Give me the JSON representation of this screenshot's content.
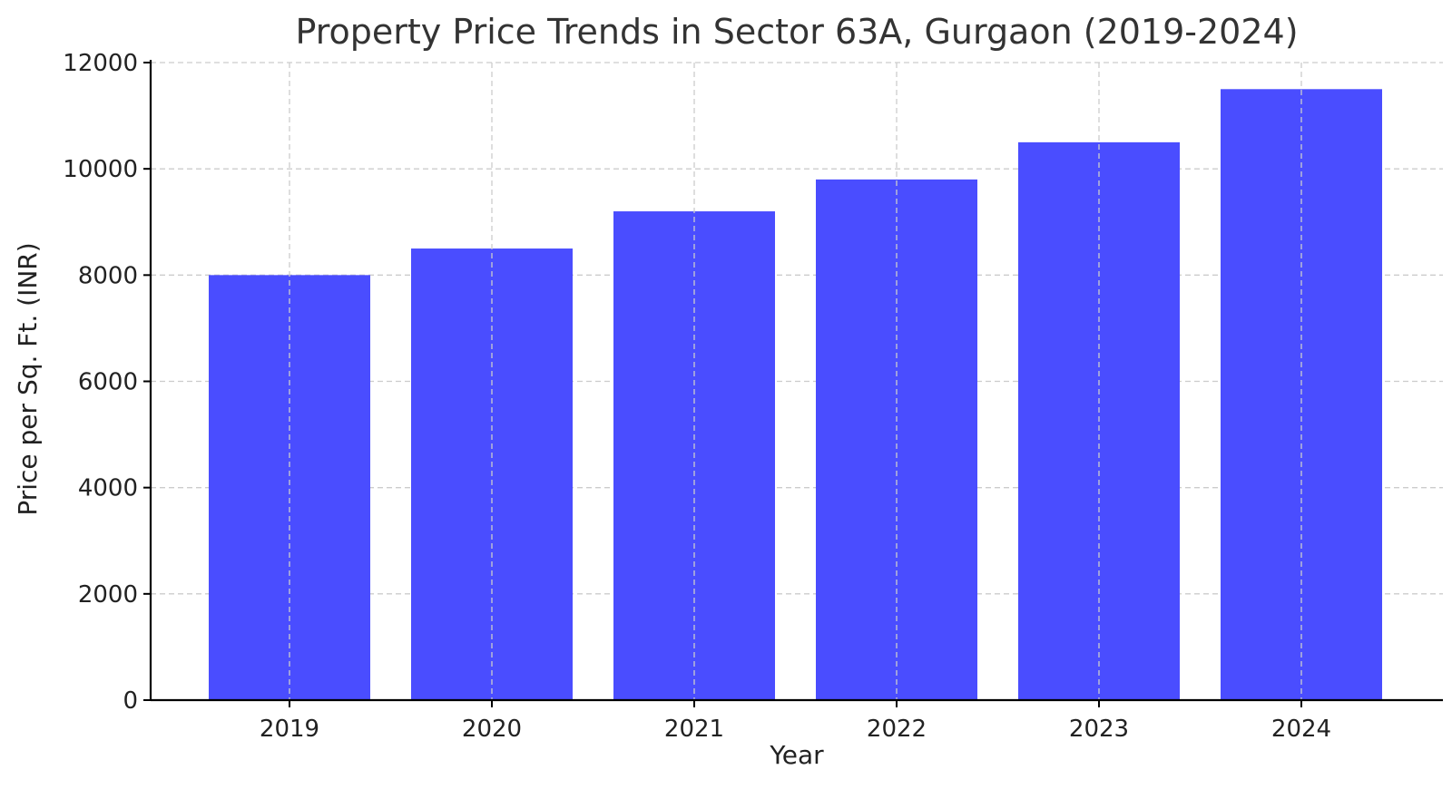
{
  "chart_data": {
    "type": "bar",
    "title": "Property Price Trends in Sector 63A, Gurgaon (2019-2024)",
    "xlabel": "Year",
    "ylabel": "Price per Sq. Ft. (INR)",
    "categories": [
      "2019",
      "2020",
      "2021",
      "2022",
      "2023",
      "2024"
    ],
    "values": [
      8000,
      8500,
      9200,
      9800,
      10500,
      11500
    ],
    "ylim": [
      0,
      12000
    ],
    "yticks": [
      0,
      2000,
      4000,
      6000,
      8000,
      10000,
      12000
    ],
    "grid": true,
    "bar_color": "#4a4dff",
    "legend": "none"
  }
}
